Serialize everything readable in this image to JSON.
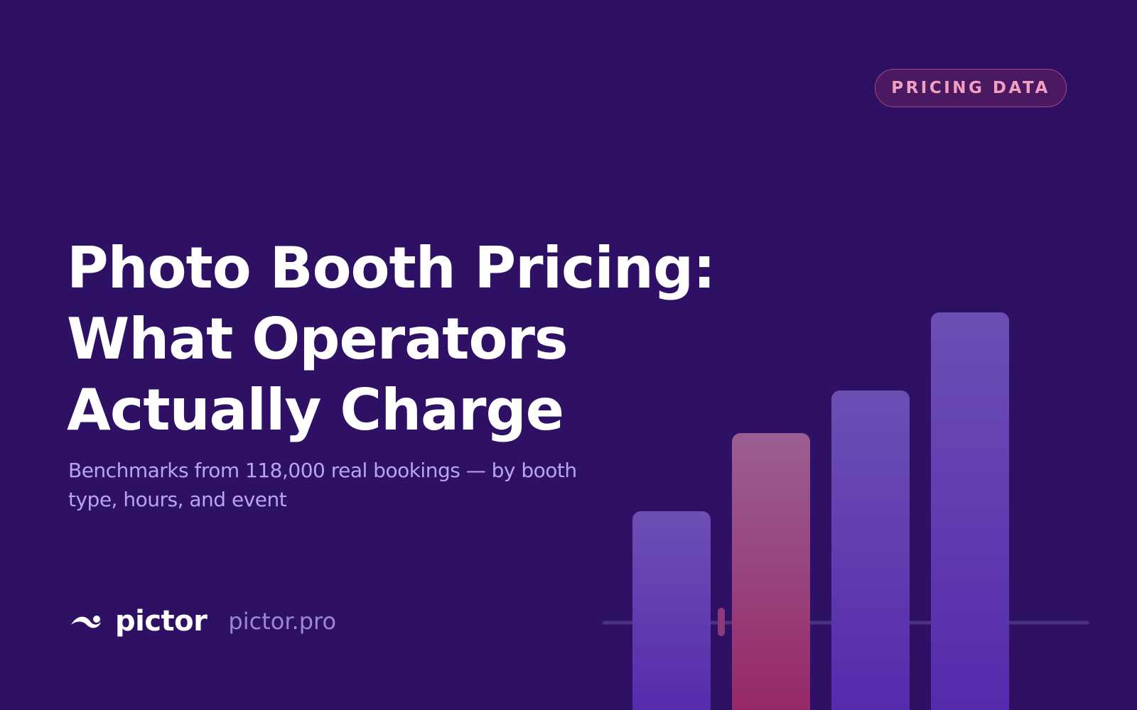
{
  "badge": "PRICING DATA",
  "title": {
    "lines": [
      "Photo Booth Pricing:",
      "What Operators",
      "Actually Charge"
    ]
  },
  "subtitle": "Benchmarks from 118,000 real bookings — by booth type, hours, and event",
  "brand": {
    "name": "pictor",
    "url": "pictor.pro"
  }
}
